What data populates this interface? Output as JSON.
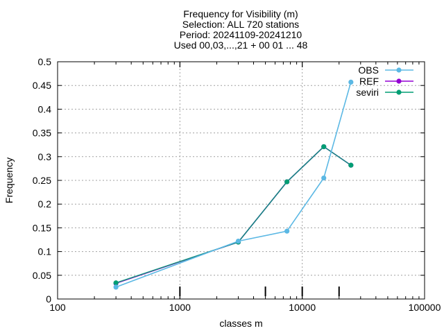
{
  "chart_data": {
    "type": "line",
    "title_lines": [
      "Frequency  for Visibility (m)",
      "Selection: ALL    720 stations",
      "Period: 20241109-20241210",
      "Used 00,03,...,21 + 00 01 ... 48"
    ],
    "xlabel": "classes m",
    "ylabel": "Frequency",
    "xscale": "log",
    "xlim": [
      100,
      100000
    ],
    "ylim": [
      0,
      0.5
    ],
    "x_ticks": [
      100,
      1000,
      10000,
      100000
    ],
    "x_tick_labels": [
      "100",
      "1000",
      "10000",
      "100000"
    ],
    "y_ticks": [
      0,
      0.05,
      0.1,
      0.15,
      0.2,
      0.25,
      0.3,
      0.35,
      0.4,
      0.45,
      0.5
    ],
    "y_tick_labels": [
      "0",
      "0.05",
      "0.1",
      "0.15",
      "0.2",
      "0.25",
      "0.3",
      "0.35",
      "0.4",
      "0.45",
      "0.5"
    ],
    "grid": true,
    "legend_position": "top-right",
    "class_boundaries": [
      1000,
      5000,
      10000,
      20000
    ],
    "series": [
      {
        "name": "OBS",
        "color": "#5bb8e4",
        "x": [
          300,
          3000,
          7500,
          15000,
          25000
        ],
        "y": [
          0.025,
          0.122,
          0.143,
          0.255,
          0.457
        ]
      },
      {
        "name": "REF",
        "color": "#9400d3",
        "x": [
          300,
          3000,
          7500,
          15000,
          25000
        ],
        "y": [
          0.033,
          0.12,
          0.247,
          0.321,
          0.282
        ]
      },
      {
        "name": "seviri",
        "color": "#009e73",
        "x": [
          300,
          3000,
          7500,
          15000,
          25000
        ],
        "y": [
          0.034,
          0.12,
          0.247,
          0.321,
          0.282
        ]
      }
    ]
  }
}
